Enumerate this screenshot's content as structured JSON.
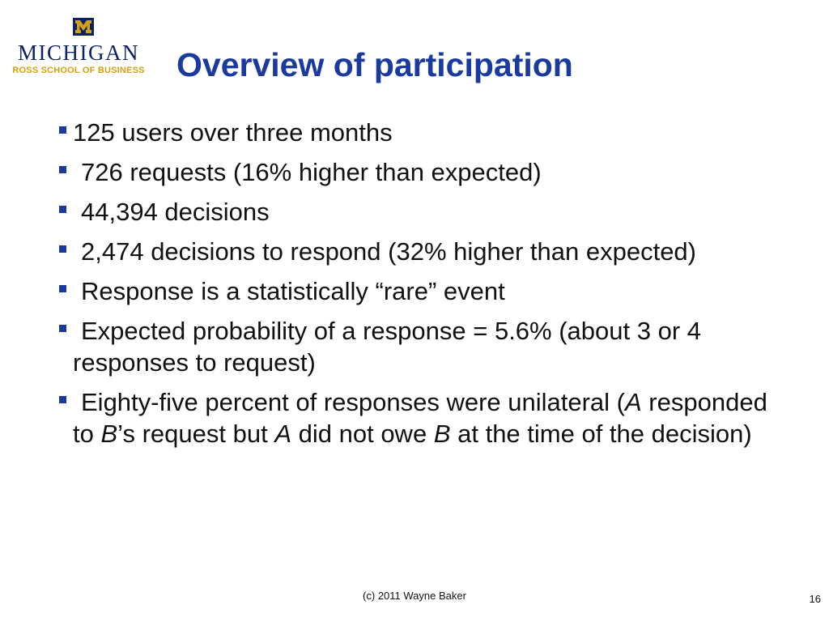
{
  "logo": {
    "wordmark": "MICHIGAN",
    "subtitle": "ROSS SCHOOL OF BUSINESS",
    "block_m_icon": "block-m-logo",
    "colors": {
      "navy": "#0b2265",
      "maize": "#d4a017"
    }
  },
  "slide": {
    "title": "Overview of participation",
    "title_color": "#1b3aa0"
  },
  "bullets": [
    {
      "segments": [
        "125 users over three months"
      ]
    },
    {
      "segments": [
        "726 requests (16% higher than expected)"
      ]
    },
    {
      "segments": [
        "44,394 decisions"
      ]
    },
    {
      "segments": [
        "2,474 decisions to respond (32% higher than expected)"
      ]
    },
    {
      "segments": [
        "Response is a statistically “rare” event"
      ]
    },
    {
      "segments": [
        "Expected probability of a response = 5.6% (about 3 or 4 responses to request)"
      ]
    },
    {
      "segments": [
        "Eighty-five percent of responses were unilateral (",
        "A",
        " responded to ",
        "B",
        "’s request but ",
        "A",
        " did not owe ",
        "B",
        " at the time of the decision)"
      ]
    }
  ],
  "footer": {
    "copyright": "(c) 2011 Wayne Baker",
    "page_number": "16"
  }
}
